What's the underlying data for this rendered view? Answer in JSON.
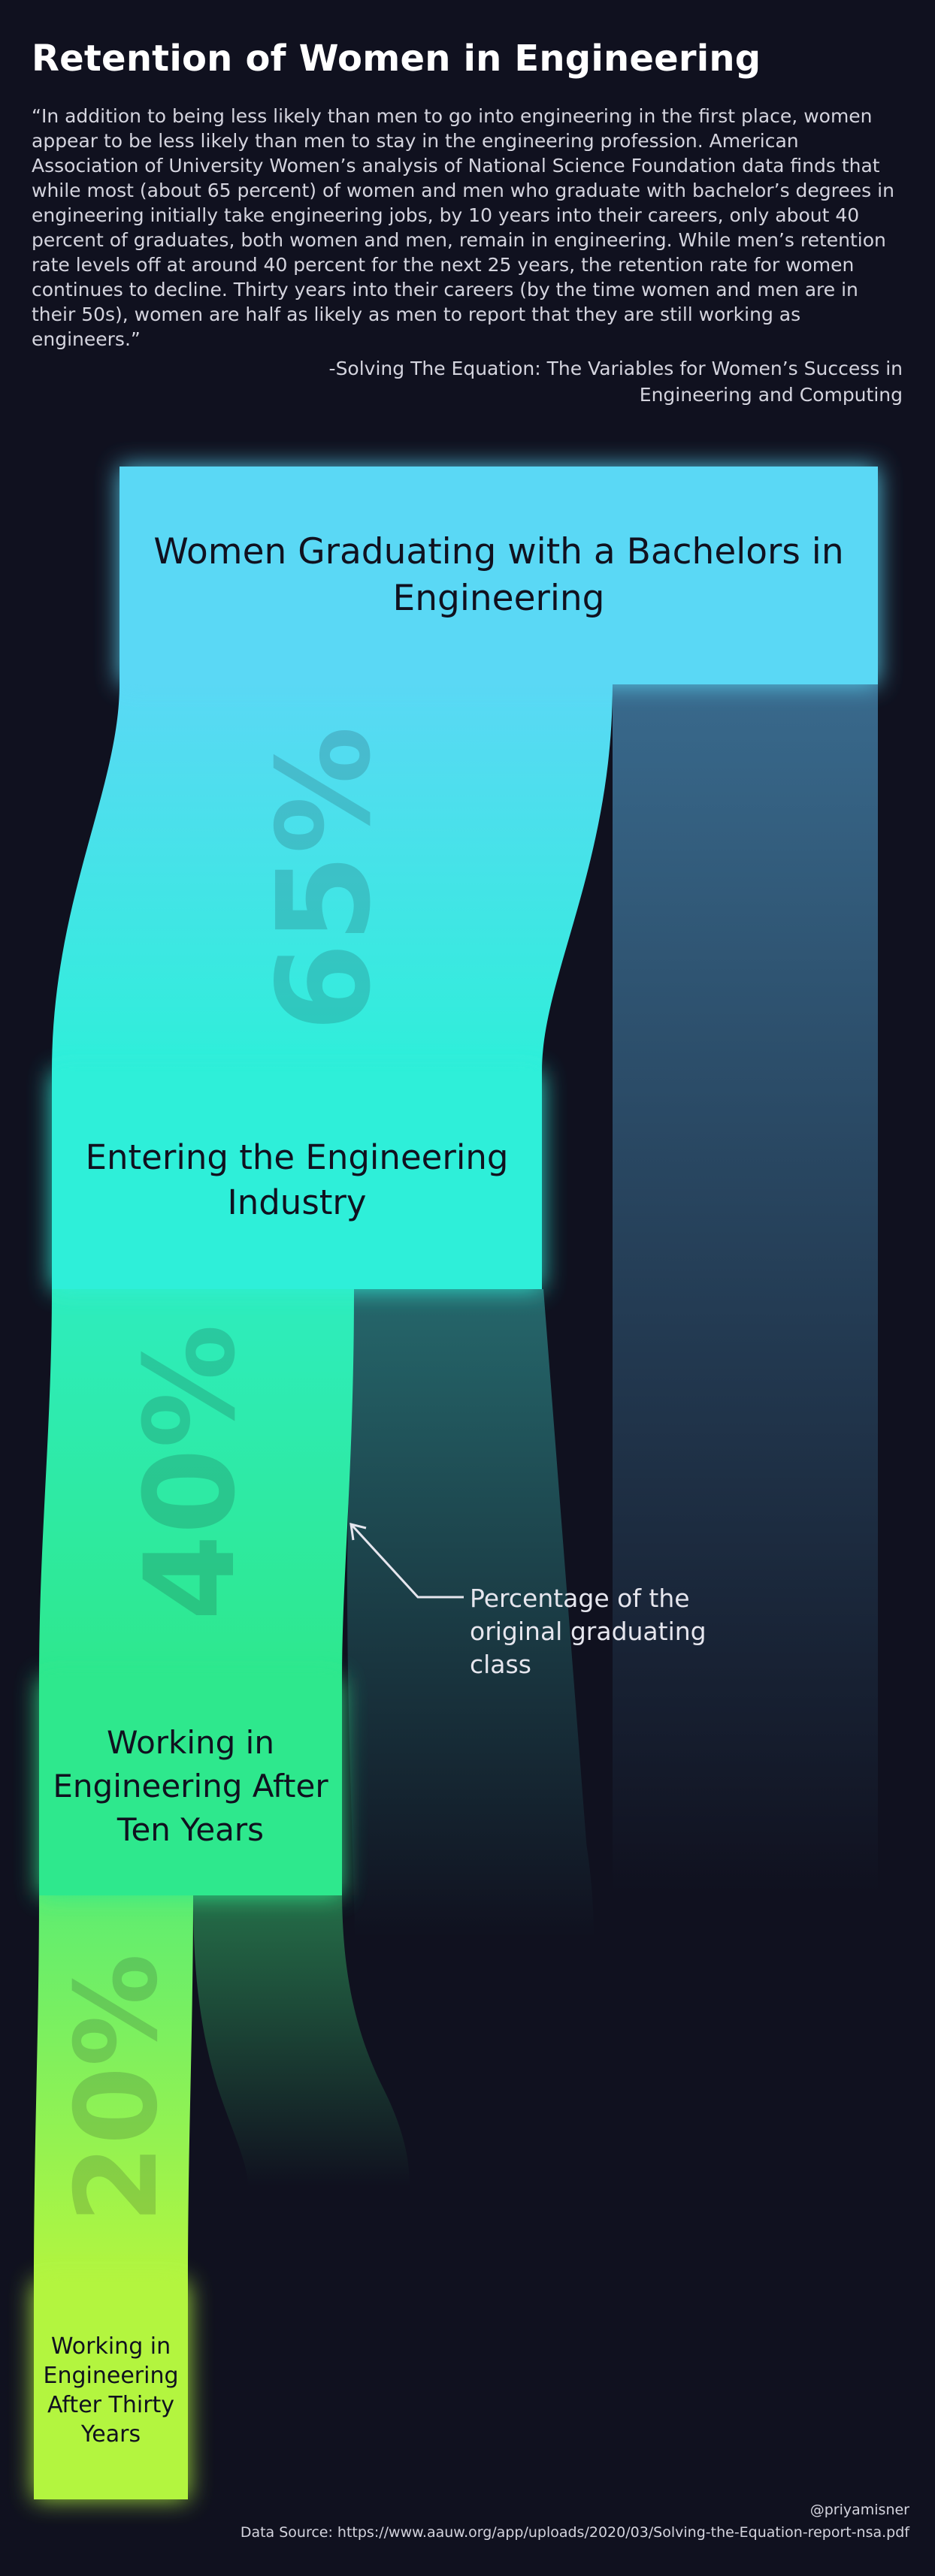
{
  "title": "Retention of Women in Engineering",
  "quote": "“In addition to being less likely than men to go into engineering in the first place, women appear to be less likely than men to stay in the engineering profession. American Association of University Women’s analysis of National Science Foundation data finds that while most (about 65 percent) of women and men who graduate with bachelor’s degrees in engineering initially take engineering jobs, by 10 years into their careers, only about 40 percent of graduates, both women and men, remain in engineering. While men’s retention rate levels off at around 40 percent for the next 25 years, the retention rate for women continues to decline. Thirty years into their careers (by the time women and men are in their 50s), women are half as likely as men to report that they are still working as engineers.”",
  "source": "-Solving The Equation: The Variables for Women’s Success in Engineering and Computing",
  "stages": [
    {
      "label": "Women Graduating with a Bachelors in Engineering",
      "value": 100
    },
    {
      "label": "Entering the Engineering Industry",
      "value": 65
    },
    {
      "label": "Working in Engineering After Ten Years",
      "value": 40
    },
    {
      "label": "Working in Engineering After Thirty Years",
      "value": 20
    }
  ],
  "flow_labels": [
    "65%",
    "40%",
    "20%"
  ],
  "annotation": "Percentage of the original graduating class",
  "credit": "@priyamisner",
  "data_source": "Data Source: https://www.aauw.org/app/uploads/2020/03/Solving-the-Equation-report-nsa.pdf",
  "colors": {
    "background": "#10111f",
    "stage1": "#5ad8f5",
    "stage2": "#2eefd9",
    "stage3": "#2ee88d",
    "stage4": "#b3f53f",
    "text_dark": "#10111f"
  }
}
